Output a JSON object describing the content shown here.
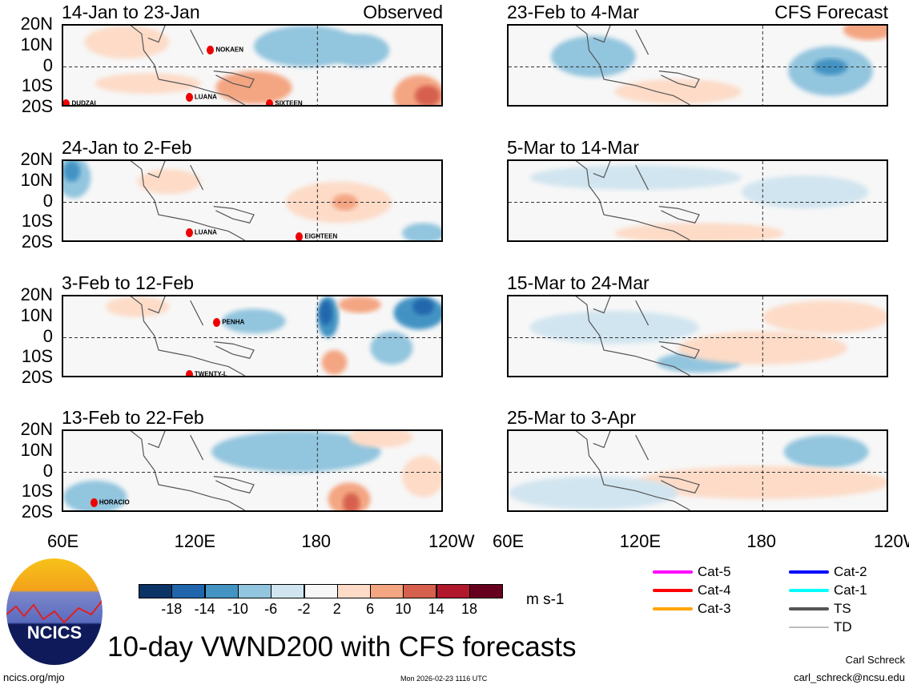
{
  "panels": [
    {
      "title": "14-Jan to 23-Jan",
      "tag": "Observed",
      "storms": [
        "NOKAEN",
        "LUANA",
        "DUDZAI",
        "SIXTEEN"
      ]
    },
    {
      "title": "24-Jan to 2-Feb",
      "storms": [
        "LUANA",
        "EIGHTEEN"
      ]
    },
    {
      "title": "3-Feb to 12-Feb",
      "storms": [
        "PENHA",
        "TWENTY-L"
      ]
    },
    {
      "title": "13-Feb to 22-Feb",
      "storms": [
        "HORACIO"
      ]
    },
    {
      "title": "23-Feb to 4-Mar",
      "tag": "CFS Forecast",
      "storms": []
    },
    {
      "title": "5-Mar to 14-Mar",
      "storms": []
    },
    {
      "title": "15-Mar to 24-Mar",
      "storms": []
    },
    {
      "title": "25-Mar to 3-Apr",
      "storms": []
    }
  ],
  "y_axis": [
    "20N",
    "10N",
    "0",
    "10S",
    "20S"
  ],
  "x_axis": [
    "60E",
    "120E",
    "180",
    "120W"
  ],
  "colorbar": {
    "colors": [
      "#0b3466",
      "#2166ac",
      "#4393c3",
      "#92c5de",
      "#d1e5f0",
      "#f7f7f7",
      "#fddbc7",
      "#f4a582",
      "#d6604d",
      "#b2182b",
      "#67001f"
    ],
    "labels": [
      "-18",
      "-14",
      "-10",
      "-6",
      "-2",
      "2",
      "6",
      "10",
      "14",
      "18"
    ],
    "units": "m s-1"
  },
  "legend": [
    {
      "label": "Cat-5",
      "color": "#ff00ff"
    },
    {
      "label": "Cat-4",
      "color": "#ff0000"
    },
    {
      "label": "Cat-3",
      "color": "#ffa500"
    },
    {
      "label": "Cat-2",
      "color": "#0000ff"
    },
    {
      "label": "Cat-1",
      "color": "#00ffff"
    },
    {
      "label": "TS",
      "color": "#555555"
    },
    {
      "label": "TD",
      "color": "#bbbbbb"
    }
  ],
  "logo_text": "NCICS",
  "main_title": "10-day VWND200 with CFS forecasts",
  "footer": {
    "url": "ncics.org/mjo",
    "timestamp": "Mon 2026-02-23 1116 UTC",
    "author": "Carl Schreck",
    "email": "carl_schreck@ncsu.edu"
  }
}
